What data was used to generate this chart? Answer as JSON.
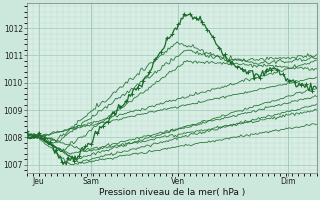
{
  "title": "Pression niveau de la mer( hPa )",
  "background_color": "#cce8dc",
  "plot_bg_color": "#d8ede4",
  "grid_color_major": "#9ecab5",
  "grid_color_minor": "#b8ddd0",
  "line_color": "#1a6b2a",
  "ylim": [
    1006.7,
    1012.9
  ],
  "yticks": [
    1007,
    1008,
    1009,
    1010,
    1011,
    1012
  ],
  "xtick_positions": [
    0.04,
    0.22,
    0.52,
    0.9
  ],
  "xtick_labels": [
    "Jeu",
    "Sam",
    "Ven",
    "Dim"
  ],
  "num_points": 200
}
